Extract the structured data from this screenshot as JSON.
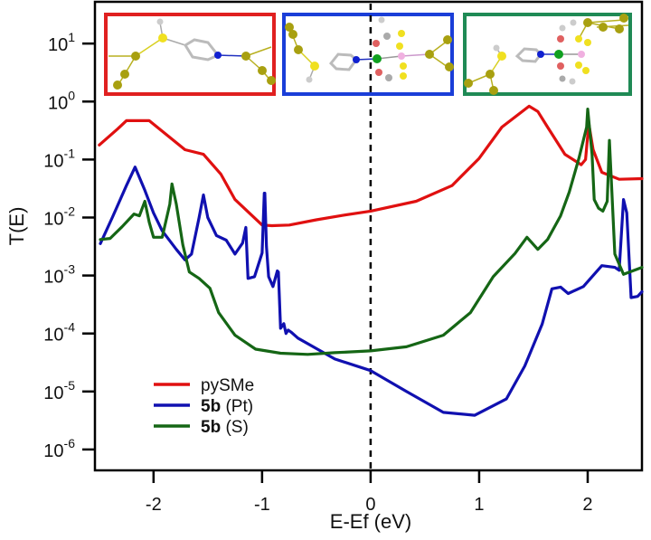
{
  "chart_data": {
    "type": "line",
    "title": "",
    "xlabel": "E-Ef (eV)",
    "ylabel": "T(E)",
    "xlim": [
      -2.54,
      2.5
    ],
    "ylim_log10": [
      -6.36,
      1.72
    ],
    "yscale": "log",
    "x_ticks": [
      -2,
      -1,
      0,
      1,
      2
    ],
    "x_tick_labels": [
      "-2",
      "-1",
      "0",
      "1",
      "2"
    ],
    "y_ticks_log10": [
      1,
      0,
      -1,
      -2,
      -3,
      -4,
      -5,
      -6
    ],
    "y_tick_labels": [
      {
        "base": "10",
        "exp": "1"
      },
      {
        "base": "10",
        "exp": "0"
      },
      {
        "base": "10",
        "exp": "-1"
      },
      {
        "base": "10",
        "exp": "-2"
      },
      {
        "base": "10",
        "exp": "-3"
      },
      {
        "base": "10",
        "exp": "-4"
      },
      {
        "base": "10",
        "exp": "-5"
      },
      {
        "base": "10",
        "exp": "-6"
      }
    ],
    "grid": false,
    "vertical_reference_line": {
      "x": 0,
      "style": "dashed",
      "color": "#000000"
    },
    "legend": {
      "placement": "bottom-left",
      "entries": [
        {
          "bold": "",
          "text": "pySMe",
          "color": "#e01010"
        },
        {
          "bold": "5b",
          "text": " (Pt)",
          "color": "#1010b0"
        },
        {
          "bold": "5b",
          "text": " (S)",
          "color": "#156615"
        }
      ]
    },
    "series": [
      {
        "name": "pySMe",
        "color": "#e01010",
        "x": [
          -2.5,
          -2.33,
          -2.25,
          -2.13,
          -2.04,
          -1.71,
          -1.54,
          -1.38,
          -1.25,
          -1.0,
          -0.91,
          -0.75,
          -0.5,
          -0.25,
          0.0,
          0.42,
          0.75,
          1.0,
          1.21,
          1.46,
          1.54,
          1.63,
          1.79,
          1.94,
          1.98,
          2.01,
          2.05,
          2.13,
          2.29,
          2.5
        ],
        "log10_y": [
          -0.75,
          -0.47,
          -0.33,
          -0.33,
          -0.33,
          -0.83,
          -0.91,
          -1.25,
          -1.69,
          -2.13,
          -2.14,
          -2.13,
          -2.04,
          -1.96,
          -1.89,
          -1.72,
          -1.45,
          -0.98,
          -0.44,
          -0.08,
          -0.17,
          -0.44,
          -0.91,
          -1.09,
          -1.0,
          -0.38,
          -0.83,
          -1.22,
          -1.34,
          -1.33
        ]
      },
      {
        "name": "5b (Pt)",
        "color": "#1010b0",
        "x": [
          -2.49,
          -2.38,
          -2.25,
          -2.17,
          -2.08,
          -2.0,
          -1.92,
          -1.79,
          -1.71,
          -1.65,
          -1.58,
          -1.54,
          -1.5,
          -1.42,
          -1.33,
          -1.25,
          -1.18,
          -1.15,
          -1.13,
          -1.07,
          -1.0,
          -0.98,
          -0.975,
          -0.96,
          -0.94,
          -0.9,
          -0.86,
          -0.85,
          -0.83,
          -0.8,
          -0.78,
          -0.76,
          -0.73,
          -0.67,
          -0.33,
          0.0,
          0.33,
          0.67,
          0.96,
          1.25,
          1.42,
          1.58,
          1.67,
          1.75,
          1.82,
          1.96,
          2.13,
          2.25,
          2.29,
          2.33,
          2.36,
          2.4,
          2.46,
          2.5
        ],
        "log10_y": [
          -2.45,
          -2.0,
          -1.45,
          -1.13,
          -1.53,
          -1.92,
          -2.23,
          -2.55,
          -2.73,
          -2.63,
          -2.0,
          -1.61,
          -2.0,
          -2.31,
          -2.39,
          -2.63,
          -2.44,
          -2.17,
          -3.05,
          -3.02,
          -2.61,
          -1.58,
          -1.58,
          -2.5,
          -3.02,
          -3.19,
          -2.92,
          -2.94,
          -3.91,
          -3.83,
          -4.0,
          -3.94,
          -3.98,
          -4.08,
          -4.44,
          -4.64,
          -5.0,
          -5.36,
          -5.41,
          -5.13,
          -4.56,
          -3.84,
          -3.23,
          -3.2,
          -3.31,
          -3.19,
          -2.83,
          -2.86,
          -2.91,
          -1.69,
          -1.92,
          -3.38,
          -3.36,
          -3.28
        ]
      },
      {
        "name": "5b (S)",
        "color": "#156615",
        "x": [
          -2.49,
          -2.4,
          -2.29,
          -2.18,
          -2.13,
          -2.08,
          -2.04,
          -2.0,
          -1.92,
          -1.85,
          -1.83,
          -1.79,
          -1.73,
          -1.67,
          -1.58,
          -1.48,
          -1.4,
          -1.25,
          -1.06,
          -0.83,
          -0.58,
          -0.33,
          0.0,
          0.33,
          0.67,
          0.92,
          1.13,
          1.33,
          1.44,
          1.54,
          1.63,
          1.75,
          1.83,
          1.92,
          1.99,
          2.0,
          2.04,
          2.06,
          2.1,
          2.14,
          2.18,
          2.2,
          2.22,
          2.25,
          2.33,
          2.5
        ],
        "log10_y": [
          -2.38,
          -2.36,
          -2.16,
          -1.94,
          -1.97,
          -1.72,
          -2.08,
          -2.34,
          -2.34,
          -1.77,
          -1.42,
          -1.77,
          -2.47,
          -2.94,
          -3.05,
          -3.22,
          -3.64,
          -4.03,
          -4.27,
          -4.34,
          -4.36,
          -4.33,
          -4.3,
          -4.23,
          -4.03,
          -3.64,
          -3.02,
          -2.62,
          -2.34,
          -2.55,
          -2.38,
          -1.97,
          -1.56,
          -0.97,
          -0.44,
          -0.13,
          -0.91,
          -1.69,
          -1.84,
          -1.89,
          -1.72,
          -0.67,
          -1.45,
          -2.63,
          -2.98,
          -2.86
        ]
      }
    ]
  },
  "insets": [
    {
      "name": "pySMe structure",
      "border_color": "#e02020"
    },
    {
      "name": "5b (Pt) structure",
      "border_color": "#1a3ed8"
    },
    {
      "name": "5b (S) structure",
      "border_color": "#1f8a55"
    }
  ]
}
